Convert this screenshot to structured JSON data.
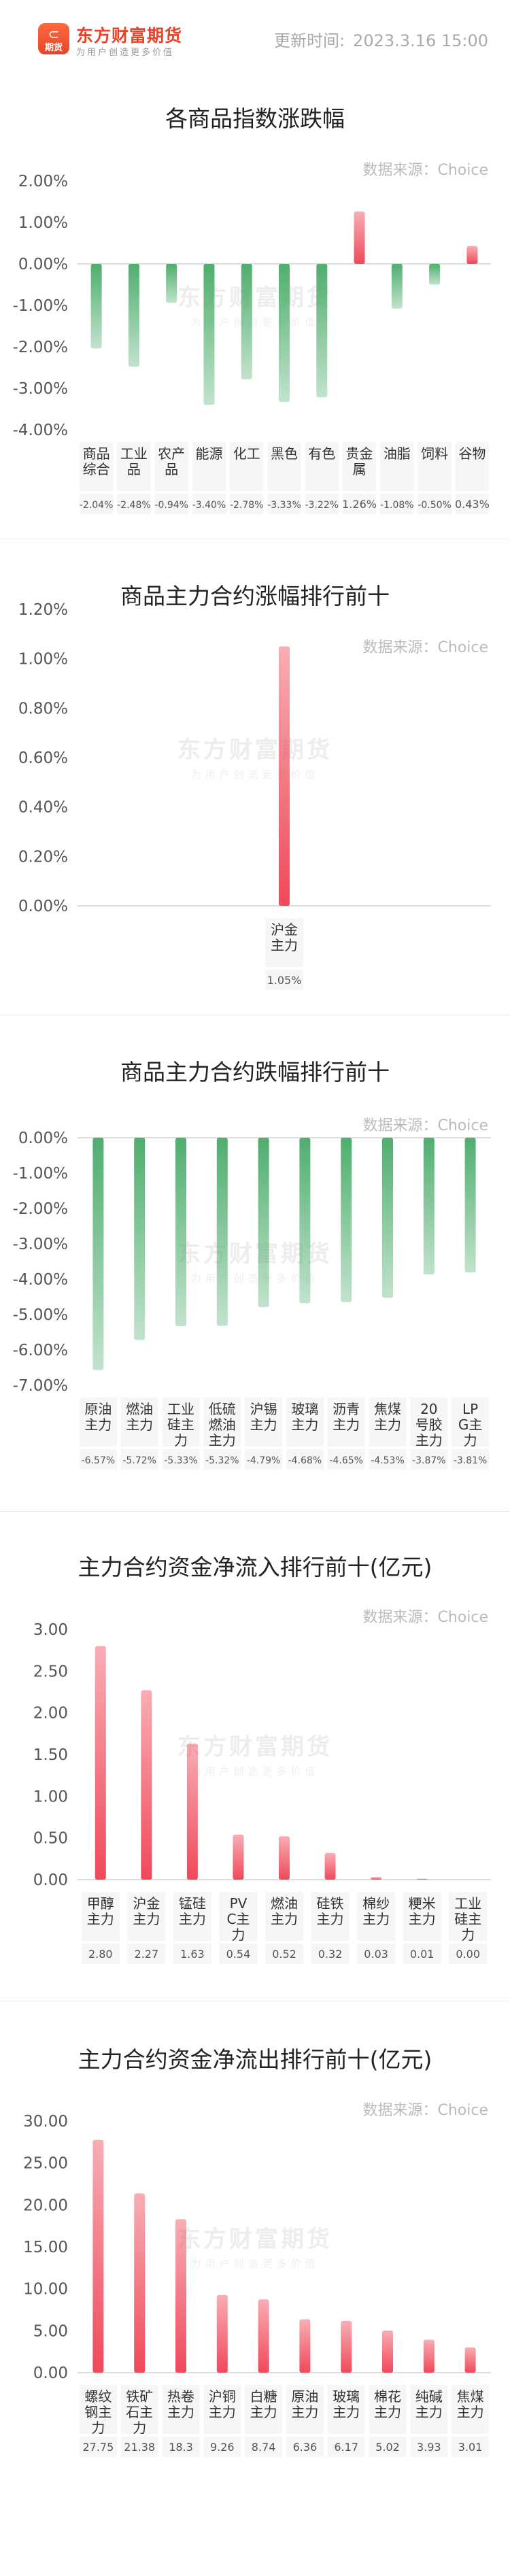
{
  "header": {
    "brand_name": "东方财富期货",
    "brand_slogan": "为用户创造更多价值",
    "logo_glyph": "⊂",
    "logo_sub": "期货",
    "update_label": "更新时间:",
    "update_time": "2023.3.16 15:00",
    "accent_color": "#e8442a"
  },
  "colors": {
    "rise": "#f0495a",
    "fall": "#4fae6e"
  },
  "source_label": "数据来源：Choice",
  "watermark": {
    "name": "东方财富期货",
    "sub": "为用户创造更多价值"
  },
  "chart_data": [
    {
      "type": "bar",
      "title": "各商品指数涨跌幅",
      "categories": [
        "商品综合",
        "工业品",
        "农产品",
        "能源",
        "化工",
        "黑色",
        "有色",
        "贵金属",
        "油脂",
        "饲料",
        "谷物"
      ],
      "values": [
        -2.04,
        -2.48,
        -0.94,
        -3.4,
        -2.78,
        -3.33,
        -3.22,
        1.26,
        -1.08,
        -0.5,
        0.43
      ],
      "value_labels": [
        "-2.04%",
        "-2.48%",
        "-0.94%",
        "-3.40%",
        "-2.78%",
        "-3.33%",
        "-3.22%",
        "1.26%",
        "-1.08%",
        "-0.50%",
        "0.43%"
      ],
      "ylim": [
        -4,
        2
      ],
      "yticks": [
        "2.00%",
        "1.00%",
        "0.00%",
        "-1.00%",
        "-2.00%",
        "-3.00%",
        "-4.00%"
      ],
      "xlabel": "",
      "ylabel": "",
      "grid": false
    },
    {
      "type": "bar",
      "title": "商品主力合约涨幅排行前十",
      "categories": [
        "沪金主力"
      ],
      "values": [
        1.05
      ],
      "value_labels": [
        "1.05%"
      ],
      "ylim": [
        0,
        1.2
      ],
      "yticks": [
        "1.20%",
        "1.00%",
        "0.80%",
        "0.60%",
        "0.40%",
        "0.20%",
        "0.00%"
      ],
      "xlabel": "",
      "ylabel": "",
      "grid": false
    },
    {
      "type": "bar",
      "title": "商品主力合约跌幅排行前十",
      "categories": [
        "原油主力",
        "燃油主力",
        "工业硅主力",
        "低硫燃油主力",
        "沪锡主力",
        "玻璃主力",
        "沥青主力",
        "焦煤主力",
        "20号胶主力",
        "LPG主力"
      ],
      "values": [
        -6.57,
        -5.72,
        -5.33,
        -5.32,
        -4.79,
        -4.68,
        -4.65,
        -4.53,
        -3.87,
        -3.81
      ],
      "value_labels": [
        "-6.57%",
        "-5.72%",
        "-5.33%",
        "-5.32%",
        "-4.79%",
        "-4.68%",
        "-4.65%",
        "-4.53%",
        "-3.87%",
        "-3.81%"
      ],
      "ylim": [
        -7,
        0
      ],
      "yticks": [
        "0.00%",
        "-1.00%",
        "-2.00%",
        "-3.00%",
        "-4.00%",
        "-5.00%",
        "-6.00%",
        "-7.00%"
      ],
      "xlabel": "",
      "ylabel": "",
      "grid": false
    },
    {
      "type": "bar",
      "title": "主力合约资金净流入排行前十(亿元)",
      "categories": [
        "甲醇主力",
        "沪金主力",
        "锰硅主力",
        "PVC主力",
        "燃油主力",
        "硅铁主力",
        "棉纱主力",
        "粳米主力",
        "工业硅主力"
      ],
      "values": [
        2.8,
        2.27,
        1.63,
        0.54,
        0.52,
        0.32,
        0.03,
        0.01,
        0.0
      ],
      "value_labels": [
        "2.80",
        "2.27",
        "1.63",
        "0.54",
        "0.52",
        "0.32",
        "0.03",
        "0.01",
        "0.00"
      ],
      "ylim": [
        0,
        3
      ],
      "yticks": [
        "3.00",
        "2.50",
        "2.00",
        "1.50",
        "1.00",
        "0.50",
        "0.00"
      ],
      "xlabel": "",
      "ylabel": "",
      "grid": false
    },
    {
      "type": "bar",
      "title": "主力合约资金净流出排行前十(亿元)",
      "categories": [
        "螺纹钢主力",
        "铁矿石主力",
        "热卷主力",
        "沪铜主力",
        "白糖主力",
        "原油主力",
        "玻璃主力",
        "棉花主力",
        "纯碱主力",
        "焦煤主力"
      ],
      "values": [
        27.75,
        21.38,
        18.3,
        9.26,
        8.74,
        6.36,
        6.17,
        5.02,
        3.93,
        3.01
      ],
      "value_labels": [
        "27.75",
        "21.38",
        "18.3",
        "9.26",
        "8.74",
        "6.36",
        "6.17",
        "5.02",
        "3.93",
        "3.01"
      ],
      "ylim": [
        0,
        30
      ],
      "yticks": [
        "30.00",
        "25.00",
        "20.00",
        "15.00",
        "10.00",
        "5.00",
        "0.00"
      ],
      "xlabel": "",
      "ylabel": "",
      "grid": false
    }
  ]
}
